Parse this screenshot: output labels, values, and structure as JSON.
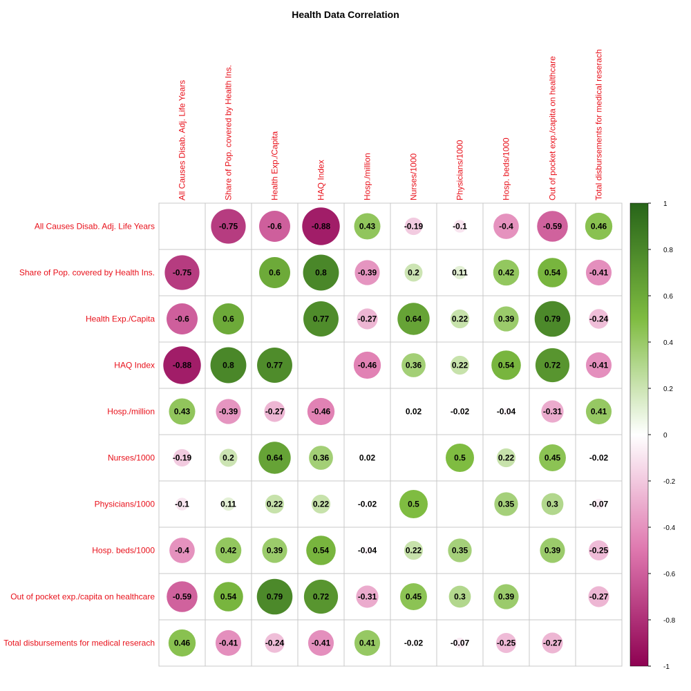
{
  "chart_data": {
    "type": "heatmap",
    "subtype": "correlation-matrix",
    "title": "Health Data Correlation",
    "variables": [
      "All Causes Disab. Adj. Life Years",
      "Share of Pop. covered by Health Ins.",
      "Health Exp./Capita",
      "HAQ Index",
      "Hosp./million",
      "Nurses/1000",
      "Physicians/1000",
      "Hosp. beds/1000",
      "Out of pocket exp./capita on healthcare",
      "Total disbursements for medical reserach"
    ],
    "matrix": [
      [
        null,
        -0.75,
        -0.6,
        -0.88,
        0.43,
        -0.19,
        -0.1,
        -0.4,
        -0.59,
        0.46
      ],
      [
        -0.75,
        null,
        0.6,
        0.8,
        -0.39,
        0.2,
        0.11,
        0.42,
        0.54,
        -0.41
      ],
      [
        -0.6,
        0.6,
        null,
        0.77,
        -0.27,
        0.64,
        0.22,
        0.39,
        0.79,
        -0.24
      ],
      [
        -0.88,
        0.8,
        0.77,
        null,
        -0.46,
        0.36,
        0.22,
        0.54,
        0.72,
        -0.41
      ],
      [
        0.43,
        -0.39,
        -0.27,
        -0.46,
        null,
        0.02,
        -0.02,
        -0.04,
        -0.31,
        0.41
      ],
      [
        -0.19,
        0.2,
        0.64,
        0.36,
        0.02,
        null,
        0.5,
        0.22,
        0.45,
        -0.02
      ],
      [
        -0.1,
        0.11,
        0.22,
        0.22,
        -0.02,
        0.5,
        null,
        0.35,
        0.3,
        -0.07
      ],
      [
        -0.4,
        0.42,
        0.39,
        0.54,
        -0.04,
        0.22,
        0.35,
        null,
        0.39,
        -0.25
      ],
      [
        -0.59,
        0.54,
        0.79,
        0.72,
        -0.31,
        0.45,
        0.3,
        0.39,
        null,
        -0.27
      ],
      [
        0.46,
        -0.41,
        -0.24,
        -0.41,
        0.41,
        -0.02,
        -0.07,
        -0.25,
        -0.27,
        null
      ]
    ],
    "value_range": [
      -1,
      1
    ],
    "colorbar": {
      "ticks": [
        1,
        0.8,
        0.6,
        0.4,
        0.2,
        0,
        -0.2,
        -0.4,
        -0.6,
        -0.8,
        -1
      ],
      "colors": {
        "negative_extreme": "#8e0152",
        "negative_mid": "#de77ae",
        "neutral": "#ffffff",
        "positive_mid": "#7fbc41",
        "positive_extreme": "#276419"
      }
    },
    "label_color": "#e8101a",
    "grid": true
  }
}
